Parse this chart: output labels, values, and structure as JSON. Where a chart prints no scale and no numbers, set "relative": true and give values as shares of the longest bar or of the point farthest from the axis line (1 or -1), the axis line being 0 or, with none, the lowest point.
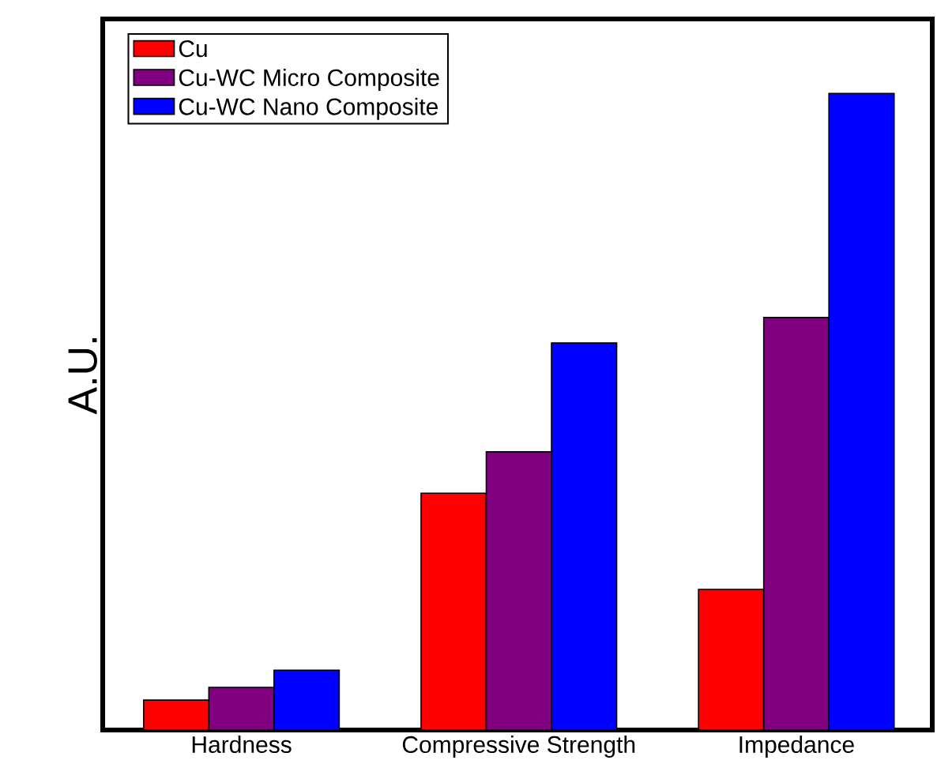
{
  "chart_data": {
    "type": "bar",
    "relative": true,
    "ylabel": "A.U.",
    "legend": "top left",
    "categories": [
      "Hardness",
      "Compressive Strength",
      "Impedance"
    ],
    "series": [
      {
        "name": "Cu",
        "color": "#ff0000",
        "values": [
          0.047,
          0.372,
          0.221
        ]
      },
      {
        "name": "Cu-WC Micro Composite",
        "color": "#800080",
        "values": [
          0.067,
          0.437,
          0.648
        ]
      },
      {
        "name": "Cu-WC Nano Composite",
        "color": "#0000ff",
        "values": [
          0.094,
          0.608,
          1.0
        ]
      }
    ]
  }
}
